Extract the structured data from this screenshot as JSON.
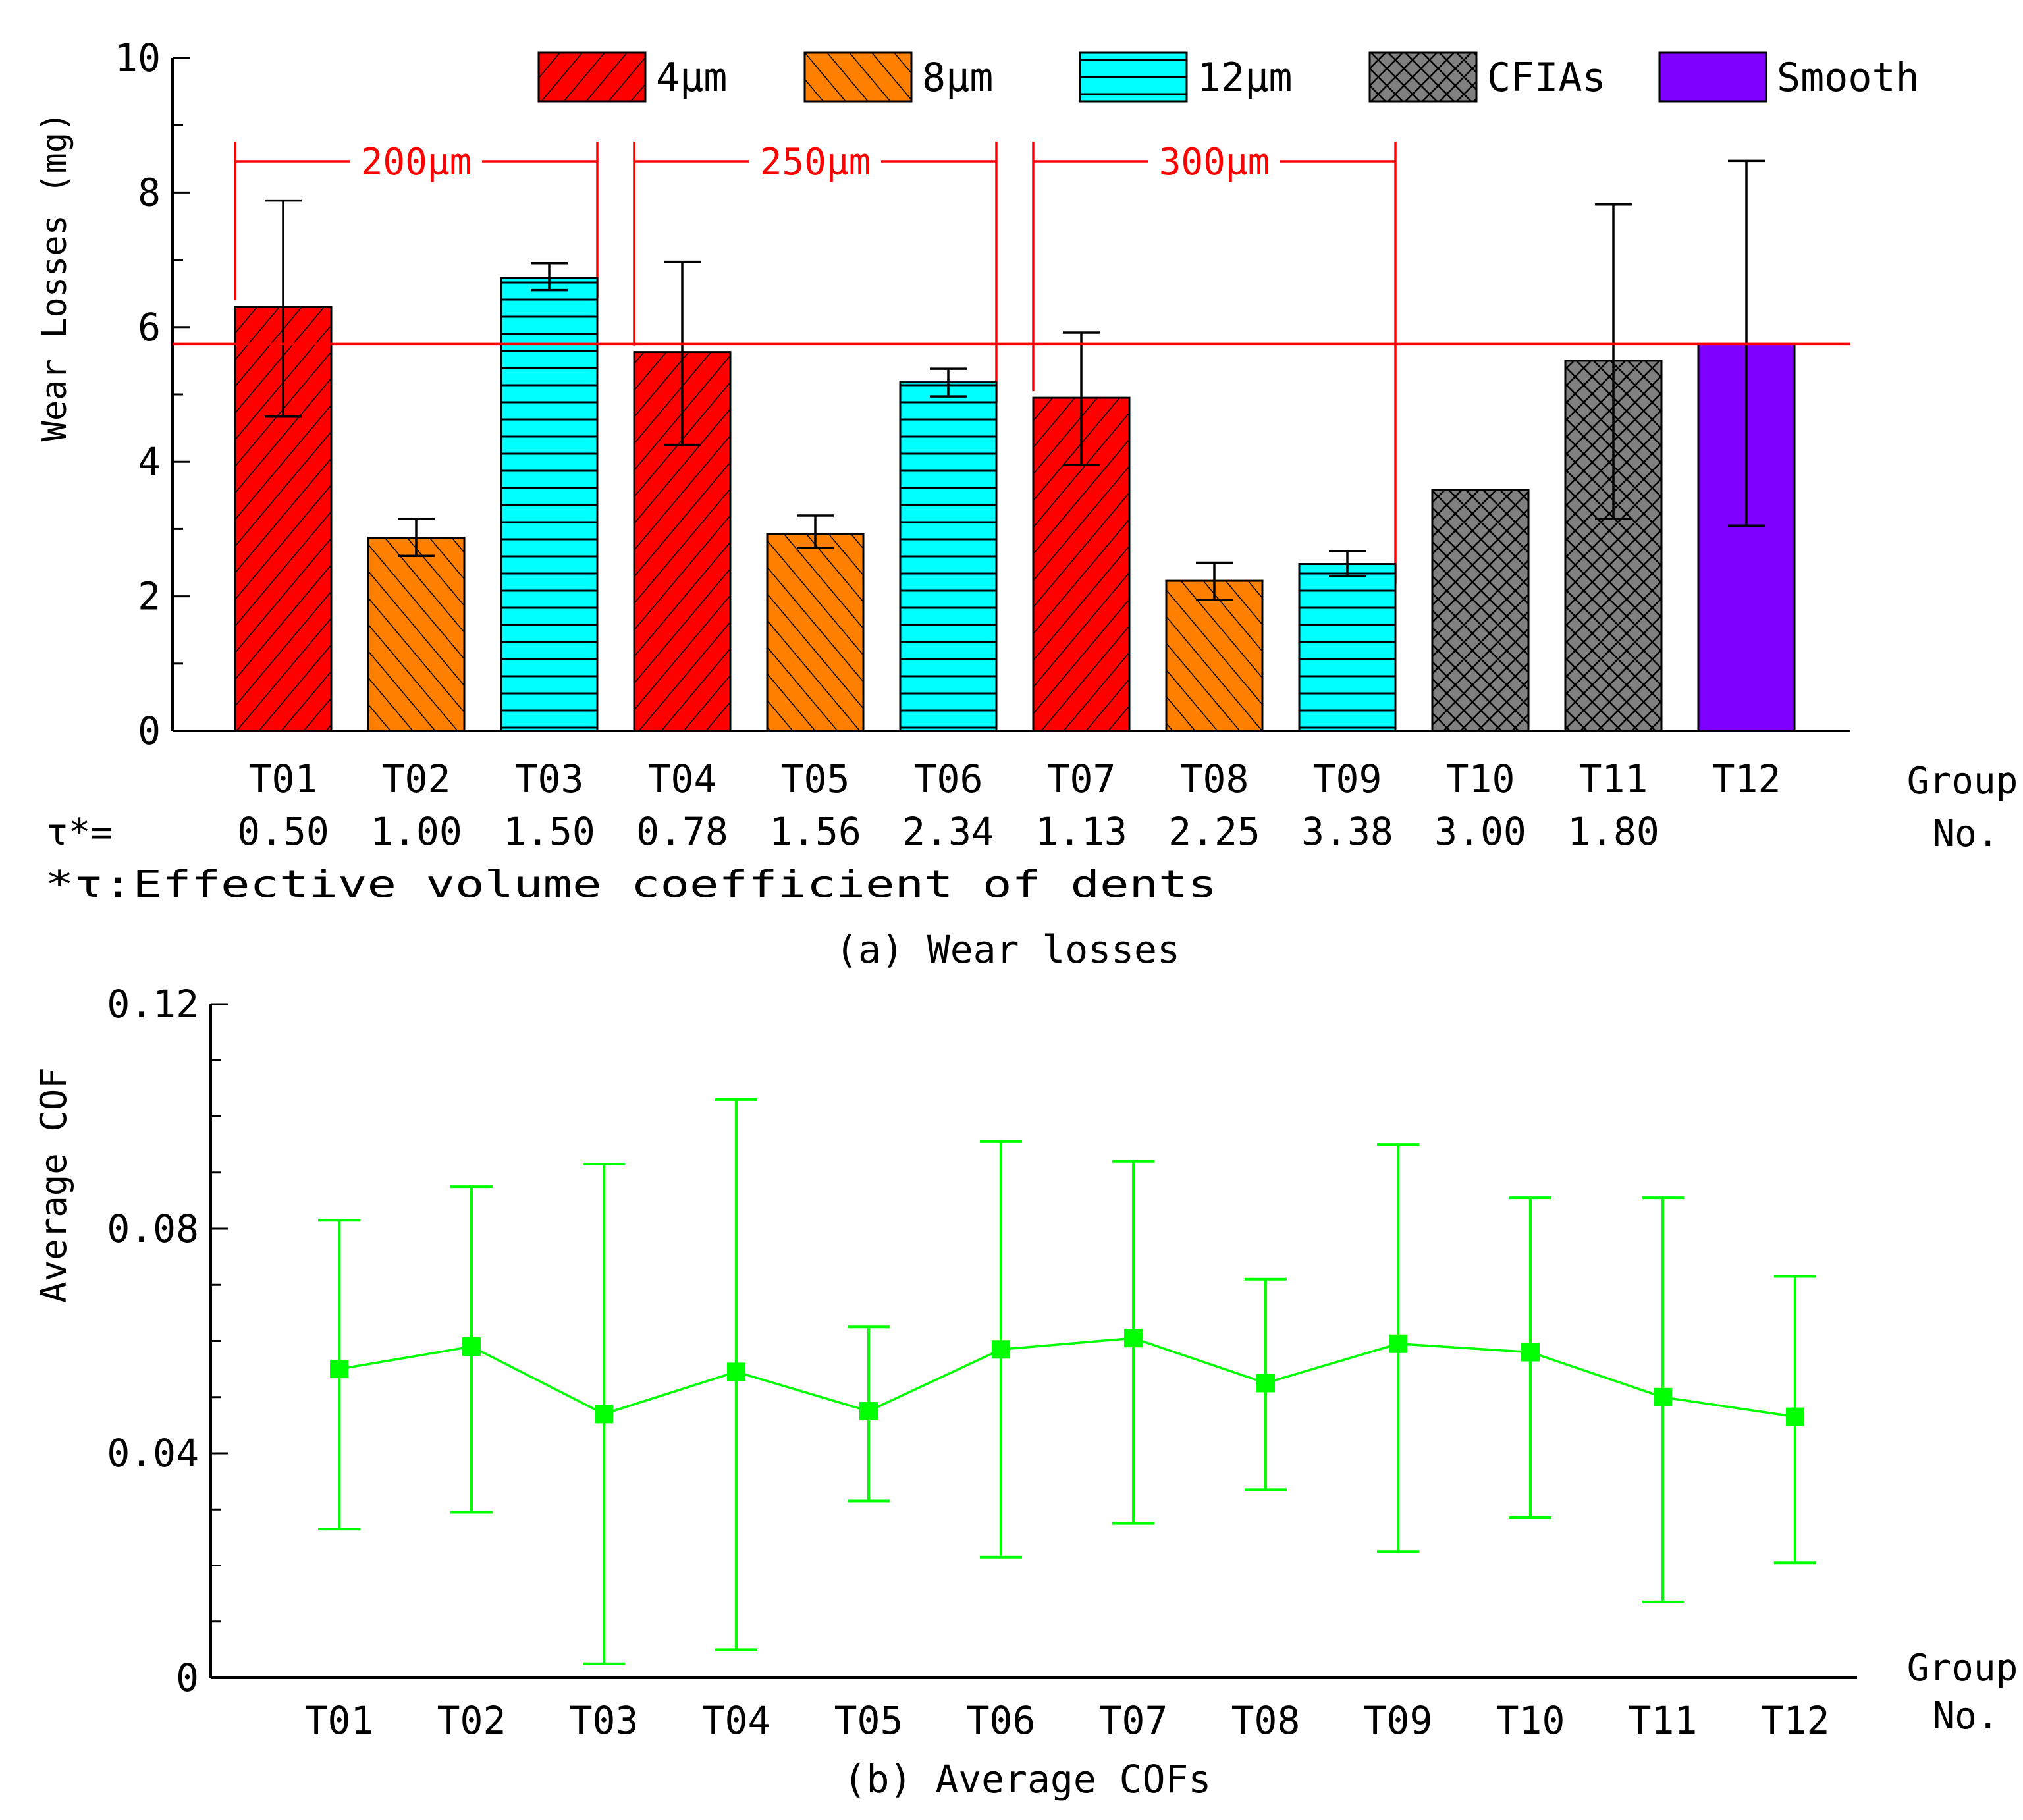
{
  "colors": {
    "um4": "#ff0000",
    "um8": "#ff8000",
    "um12": "#00ffff",
    "cfias": "#808080",
    "smooth": "#8000ff",
    "annot": "#ff0000",
    "line": "#00ff00"
  },
  "chart_data": [
    {
      "type": "bar",
      "title": "(a) Wear losses",
      "ylabel": "Wear Losses (mg)",
      "xlabel": "Group No.",
      "xlabel_lines": [
        "Group",
        "No."
      ],
      "ylim": [
        0,
        10
      ],
      "yticks": [
        "0",
        "2",
        "4",
        "6",
        "8",
        "10"
      ],
      "categories": [
        "T01",
        "T02",
        "T03",
        "T04",
        "T05",
        "T06",
        "T07",
        "T08",
        "T09",
        "T10",
        "T11",
        "T12"
      ],
      "values": [
        6.3,
        2.87,
        6.73,
        5.63,
        2.93,
        5.18,
        4.95,
        2.23,
        2.48,
        3.58,
        5.5,
        5.75
      ],
      "err_low": [
        4.67,
        2.6,
        6.55,
        4.25,
        2.72,
        4.97,
        3.95,
        1.95,
        2.3,
        null,
        3.15,
        3.05
      ],
      "err_high": [
        7.88,
        3.15,
        6.95,
        6.97,
        3.2,
        5.38,
        5.92,
        2.5,
        2.67,
        null,
        7.82,
        8.47
      ],
      "groups": [
        "4um",
        "8um",
        "12um",
        "4um",
        "8um",
        "12um",
        "4um",
        "8um",
        "12um",
        "cfias",
        "cfias",
        "smooth"
      ],
      "legend": [
        {
          "key": "4um",
          "label": "4μm"
        },
        {
          "key": "8um",
          "label": "8μm"
        },
        {
          "key": "12um",
          "label": "12μm"
        },
        {
          "key": "cfias",
          "label": "CFIAs"
        },
        {
          "key": "smooth",
          "label": "Smooth"
        }
      ],
      "legend_position": "top",
      "reference_line": 5.75,
      "spacing_annotations": [
        {
          "label": "200μm",
          "from": "T01",
          "to": "T03"
        },
        {
          "label": "250μm",
          "from": "T04",
          "to": "T06"
        },
        {
          "label": "300μm",
          "from": "T07",
          "to": "T09"
        }
      ],
      "tau_prefix": "τ*=",
      "tau_values": [
        "0.50",
        "1.00",
        "1.50",
        "0.78",
        "1.56",
        "2.34",
        "1.13",
        "2.25",
        "3.38",
        "3.00",
        "1.80",
        ""
      ],
      "footnote": "*τ:Effective volume coefficient of dents"
    },
    {
      "type": "line",
      "title": "(b) Average COFs",
      "ylabel": "Average COF",
      "xlabel": "Group No.",
      "xlabel_lines": [
        "Group",
        "No."
      ],
      "ylim": [
        0,
        0.12
      ],
      "yticks": [
        "0",
        "0.04",
        "0.08",
        "0.12"
      ],
      "categories": [
        "T01",
        "T02",
        "T03",
        "T04",
        "T05",
        "T06",
        "T07",
        "T08",
        "T09",
        "T10",
        "T11",
        "T12"
      ],
      "values": [
        0.055,
        0.059,
        0.047,
        0.0545,
        0.0475,
        0.0585,
        0.0605,
        0.0525,
        0.0595,
        0.058,
        0.05,
        0.0465
      ],
      "err_low": [
        0.0265,
        0.0295,
        0.0025,
        0.005,
        0.0315,
        0.0215,
        0.0275,
        0.0335,
        0.0225,
        0.0285,
        0.0135,
        0.0205
      ],
      "err_high": [
        0.0815,
        0.0875,
        0.0915,
        0.103,
        0.0625,
        0.0955,
        0.092,
        0.071,
        0.095,
        0.0855,
        0.0855,
        0.0715
      ]
    }
  ]
}
